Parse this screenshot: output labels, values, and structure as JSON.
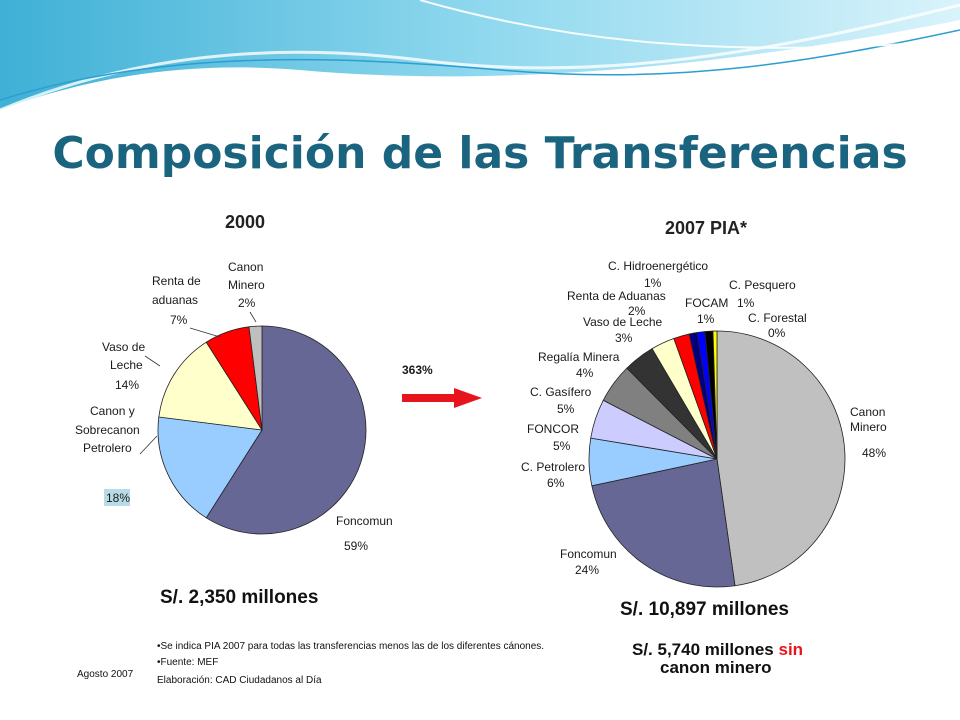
{
  "slide": {
    "title": "Composición de las Transferencias"
  },
  "colors": {
    "title": "#1a6480",
    "arrow": "#e8141c",
    "header_wave": "#5bc0de"
  },
  "arrow": {
    "label": "363%"
  },
  "chart_data": [
    {
      "type": "pie",
      "title": "2000",
      "slices": [
        {
          "name": "Foncomun",
          "pct": "59%",
          "value": 59,
          "color": "#676796"
        },
        {
          "name": "Canon y Sobrecanon Petrolero",
          "pct": "18%",
          "value": 18,
          "color": "#99ccff"
        },
        {
          "name": "Vaso de Leche",
          "pct": "14%",
          "value": 14,
          "color": "#ffffcc"
        },
        {
          "name": "Renta de aduanas",
          "pct": "7%",
          "value": 7,
          "color": "#ff0000"
        },
        {
          "name": "Canon Minero",
          "pct": "2%",
          "value": 2,
          "color": "#bfbfbf"
        }
      ],
      "total": "S/. 2,350 millones"
    },
    {
      "type": "pie",
      "title": "2007 PIA*",
      "slices": [
        {
          "name": "Canon Minero",
          "pct": "48%",
          "value": 48,
          "color": "#c0c0c0"
        },
        {
          "name": "Foncomun",
          "pct": "24%",
          "value": 24,
          "color": "#676796"
        },
        {
          "name": "C. Petrolero",
          "pct": "6%",
          "value": 6,
          "color": "#99ccff"
        },
        {
          "name": "FONCOR",
          "pct": "5%",
          "value": 5,
          "color": "#ccccff"
        },
        {
          "name": "C. Gasífero",
          "pct": "5%",
          "value": 5,
          "color": "#808080"
        },
        {
          "name": "Regalía Minera",
          "pct": "4%",
          "value": 4,
          "color": "#333333"
        },
        {
          "name": "Vaso de Leche",
          "pct": "3%",
          "value": 3,
          "color": "#ffffcc"
        },
        {
          "name": "Renta de Aduanas",
          "pct": "2%",
          "value": 2,
          "color": "#ff0000"
        },
        {
          "name": "C. Hidroenergético",
          "pct": "1%",
          "value": 1,
          "color": "#000080"
        },
        {
          "name": "FOCAM",
          "pct": "1%",
          "value": 1,
          "color": "#0000ff"
        },
        {
          "name": "C. Pesquero",
          "pct": "1%",
          "value": 1,
          "color": "#000000"
        },
        {
          "name": "C. Forestal",
          "pct": "0%",
          "value": 0.5,
          "color": "#ffff00"
        }
      ],
      "total": "S/. 10,897 millones",
      "total2_prefix": "S/. 5,740 millones",
      "total2_highlight": "sin",
      "total2_suffix": "canon minero"
    }
  ],
  "notes": {
    "line1": "•Se indica PIA 2007 para  todas las transferencias menos las de los diferentes cánones.",
    "line2": "•Fuente: MEF",
    "line3": "Elaboración: CAD Ciudadanos al Día",
    "date": "Agosto 2007"
  }
}
